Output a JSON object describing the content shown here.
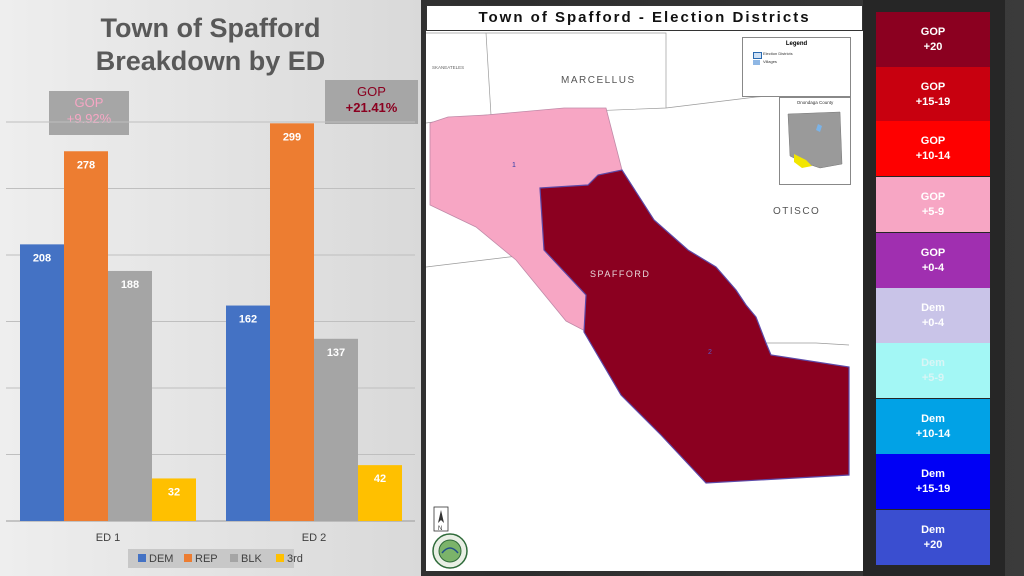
{
  "chart_data": {
    "type": "bar",
    "title": [
      "Town of Spafford",
      "Breakdown by ED"
    ],
    "categories": [
      "ED 1",
      "ED 2"
    ],
    "series": [
      {
        "name": "DEM",
        "values": [
          208,
          162
        ],
        "color": "#4472c4"
      },
      {
        "name": "REP",
        "values": [
          278,
          299
        ],
        "color": "#ed7d31"
      },
      {
        "name": "BLK",
        "values": [
          188,
          137
        ],
        "color": "#a5a5a5"
      },
      {
        "name": "3rd",
        "values": [
          32,
          42
        ],
        "color": "#ffc000"
      }
    ],
    "ylim": [
      0,
      300
    ],
    "grid": true,
    "legend": "bottom",
    "annotations": [
      {
        "party": "GOP",
        "margin": "+9.92%",
        "color": "#f7a6c4"
      },
      {
        "party": "GOP",
        "margin": "+21.41%",
        "color": "#8b0020"
      }
    ]
  },
  "map": {
    "title": "Town of Spafford - Election Districts",
    "town_labels": [
      "MARCELLUS",
      "OTISCO",
      "SPAFFORD",
      "SKANEATELES"
    ],
    "district_labels": [
      "1",
      "2"
    ],
    "legend_title": "Legend",
    "legend_items": [
      "Election Districts",
      "Villages"
    ],
    "inset_title": "Onondaga County",
    "district_colors": {
      "1": "#f7a6c4",
      "2": "#8b0020"
    }
  },
  "scale": [
    {
      "label": [
        "GOP",
        "+20"
      ],
      "color": "#8b0020",
      "text_color": "#ffffff"
    },
    {
      "label": [
        "GOP",
        "+15-19"
      ],
      "color": "#c8000f",
      "text_color": "#ffffff"
    },
    {
      "label": [
        "GOP",
        "+10-14"
      ],
      "color": "#fe0000",
      "text_color": "#ffffff"
    },
    {
      "label": [
        "GOP",
        "+5-9"
      ],
      "color": "#f7a6c4",
      "text_color": "#ffffff"
    },
    {
      "label": [
        "GOP",
        "+0-4"
      ],
      "color": "#a02fb0",
      "text_color": "#ffffff"
    },
    {
      "label": [
        "Dem",
        "+0-4"
      ],
      "color": "#c9c4e8",
      "text_color": "#ffffff"
    },
    {
      "label": [
        "Dem",
        "+5-9"
      ],
      "color": "#a3f7f5",
      "text_color": "#d9f5f5"
    },
    {
      "label": [
        "Dem",
        "+10-14"
      ],
      "color": "#01a2e6",
      "text_color": "#ffffff"
    },
    {
      "label": [
        "Dem",
        "+15-19"
      ],
      "color": "#0000f5",
      "text_color": "#ffffff"
    },
    {
      "label": [
        "Dem",
        "+20"
      ],
      "color": "#3a4ed0",
      "text_color": "#ffffff"
    }
  ]
}
